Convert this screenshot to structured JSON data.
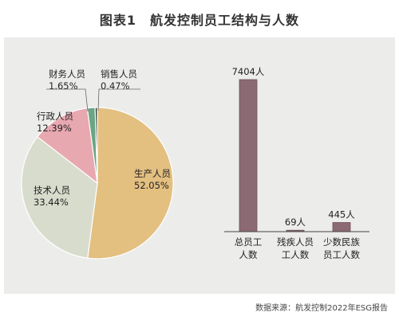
{
  "title": "图表1　航发控制员工结构与人数",
  "source": "数据来源：航发控制2022年ESG报告",
  "chart_data": [
    {
      "type": "pie",
      "slices": [
        {
          "label": "生产人员",
          "value_label": "52.05%",
          "value": 52.05,
          "color": "#e3bf80"
        },
        {
          "label": "技术人员",
          "value_label": "33.44%",
          "value": 33.44,
          "color": "#d8dccc"
        },
        {
          "label": "行政人员",
          "value_label": "12.39%",
          "value": 12.39,
          "color": "#e8a8b0"
        },
        {
          "label": "财务人员",
          "value_label": "1.65%",
          "value": 1.65,
          "color": "#6aa584"
        },
        {
          "label": "销售人员",
          "value_label": "0.47%",
          "value": 0.47,
          "color": "#2f3b33"
        }
      ]
    },
    {
      "type": "bar",
      "categories": [
        [
          "总员工",
          "人数"
        ],
        [
          "残疾人员",
          "工人数"
        ],
        [
          "少数民族",
          "员工人数"
        ]
      ],
      "values": [
        7404,
        69,
        445
      ],
      "value_labels": [
        "7404人",
        "69人",
        "445人"
      ],
      "color": "#8b6a73"
    }
  ]
}
